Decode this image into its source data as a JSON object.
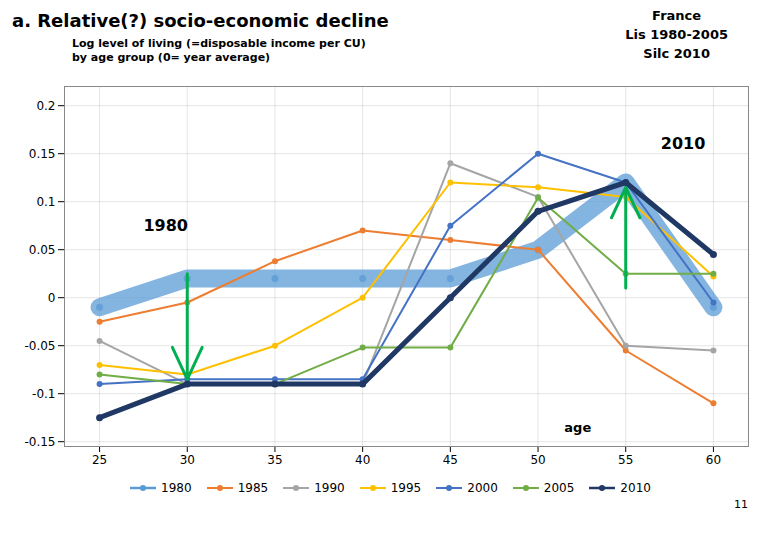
{
  "chart_data": {
    "type": "line",
    "title": "a. Relative(?) socio-economic decline",
    "subtitle": [
      "Log level of living (=disposable income per CU)",
      "by age group (0= year average)"
    ],
    "country_label": "France\nLis 1980-2005\nSilc 2010",
    "page_number": "11",
    "x": [
      25,
      30,
      35,
      40,
      45,
      50,
      55,
      60
    ],
    "series": [
      {
        "name": "1980",
        "color": "#5B9BD5",
        "marker": "circle",
        "line_style": "band",
        "values": [
          -0.01,
          0.02,
          0.02,
          0.02,
          0.02,
          0.05,
          0.12,
          -0.01
        ]
      },
      {
        "name": "1985",
        "color": "#ED7D31",
        "marker": "circle",
        "line_style": "solid",
        "values": [
          -0.025,
          -0.005,
          0.038,
          0.07,
          0.06,
          0.05,
          -0.055,
          -0.11
        ]
      },
      {
        "name": "1990",
        "color": "#A5A5A5",
        "marker": "circle",
        "line_style": "solid",
        "values": [
          -0.045,
          -0.09,
          -0.09,
          -0.09,
          0.14,
          0.105,
          -0.05,
          -0.055
        ]
      },
      {
        "name": "1995",
        "color": "#FFC000",
        "marker": "circle",
        "line_style": "solid",
        "values": [
          -0.07,
          -0.08,
          -0.05,
          0.0,
          0.12,
          0.115,
          0.105,
          0.022
        ]
      },
      {
        "name": "2000",
        "color": "#4472C4",
        "marker": "circle",
        "line_style": "solid",
        "values": [
          -0.09,
          -0.085,
          -0.085,
          -0.085,
          0.075,
          0.15,
          0.12,
          -0.005
        ]
      },
      {
        "name": "2005",
        "color": "#70AD47",
        "marker": "circle",
        "line_style": "solid",
        "values": [
          -0.08,
          -0.09,
          -0.09,
          -0.052,
          -0.052,
          0.104,
          0.025,
          0.025
        ]
      },
      {
        "name": "2010",
        "color": "#1F3864",
        "marker": "circle",
        "line_style": "bold",
        "values": [
          -0.125,
          -0.09,
          -0.09,
          -0.09,
          0.0,
          0.09,
          0.12,
          0.045
        ]
      }
    ],
    "xlim": [
      23,
      62
    ],
    "xticks": [
      25,
      30,
      35,
      40,
      45,
      50,
      55,
      60
    ],
    "ylim": [
      -0.155,
      0.22
    ],
    "yticks": [
      -0.15,
      -0.1,
      -0.05,
      0,
      0.05,
      0.1,
      0.15,
      0.2
    ],
    "grid": true,
    "legend": "bottom",
    "annotations": [
      {
        "text": "age",
        "x": 51.5,
        "y": -0.14
      },
      {
        "text": "1980",
        "x": 27.5,
        "y": 0.07
      },
      {
        "text": "2010",
        "x": 57.0,
        "y": 0.155
      }
    ],
    "arrows": [
      {
        "x": 30,
        "y_start": 0.025,
        "y_end": -0.085,
        "color": "#00B050"
      },
      {
        "x": 55,
        "y_start": 0.01,
        "y_end": 0.115,
        "color": "#00B050"
      }
    ]
  }
}
